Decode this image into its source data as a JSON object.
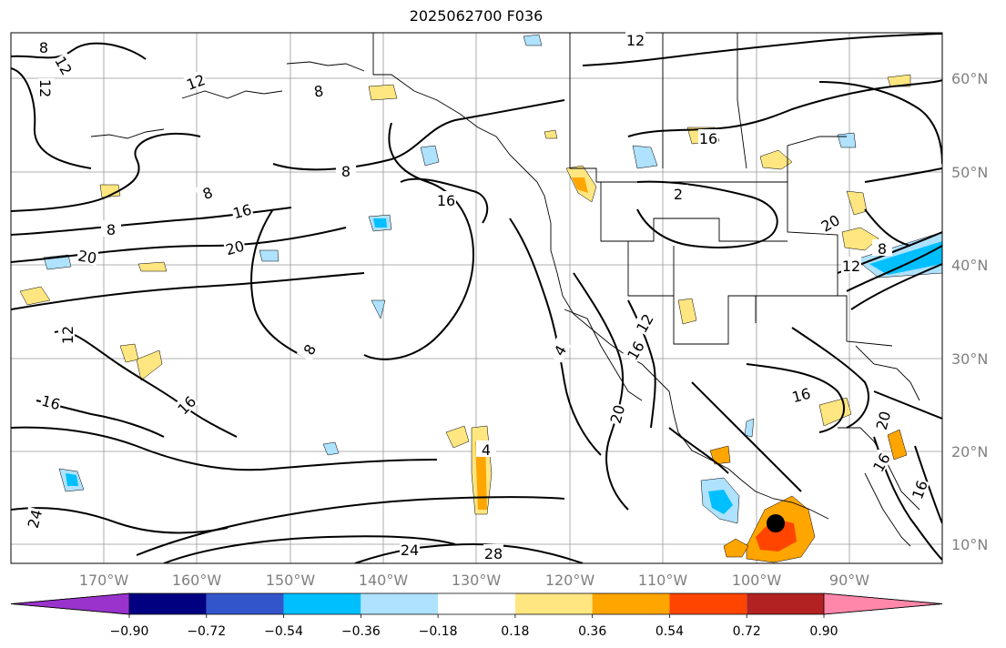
{
  "title": "2025062700 F036",
  "map": {
    "lat_labels": [
      "60°N",
      "50°N",
      "40°N",
      "30°N",
      "20°N",
      "10°N"
    ],
    "lon_labels": [
      "170°W",
      "160°W",
      "150°W",
      "140°W",
      "130°W",
      "120°W",
      "110°W",
      "100°W",
      "90°W"
    ],
    "contour_labels": [
      "8",
      "12",
      "12",
      "12",
      "8",
      "12",
      "16",
      "8",
      "8",
      "16",
      "8",
      "16",
      "16",
      "20",
      "20",
      "8",
      "12",
      "16",
      "16",
      "4",
      "12",
      "16",
      "20",
      "16",
      "20",
      "24",
      "24",
      "28",
      "4",
      "12",
      "16",
      "20",
      "16",
      "2",
      "8"
    ],
    "marker": "storm-center"
  },
  "colorbar": {
    "ticks": [
      "−0.90",
      "−0.72",
      "−0.54",
      "−0.36",
      "−0.18",
      "0.18",
      "0.36",
      "0.54",
      "0.72",
      "0.90"
    ],
    "colors": [
      "#9933cc",
      "#000080",
      "#3355cc",
      "#00bfff",
      "#aee2ff",
      "#ffffff",
      "#ffe680",
      "#ffa500",
      "#ff4500",
      "#b22222",
      "#ff88aa"
    ]
  }
}
